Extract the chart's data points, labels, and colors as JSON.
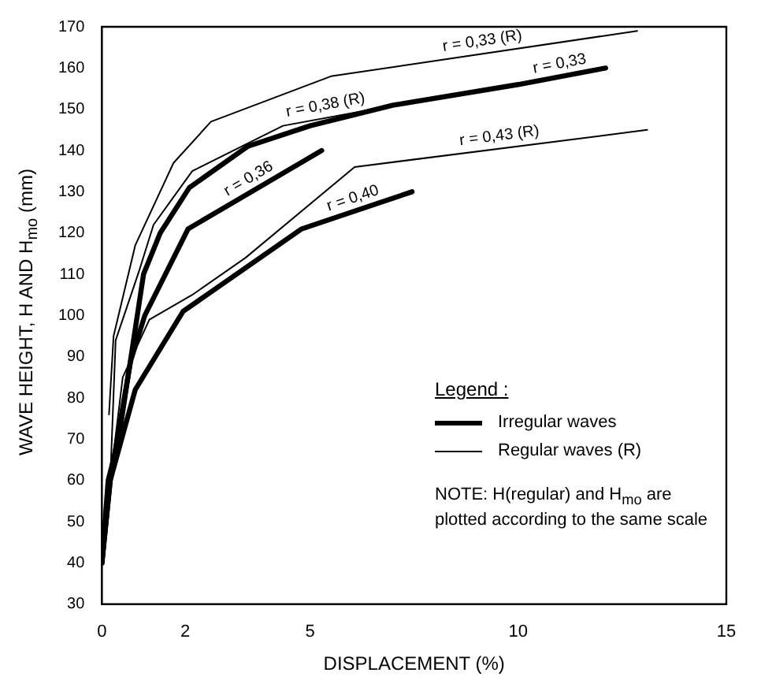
{
  "chart_data": {
    "type": "line",
    "xlabel": "DISPLACEMENT (%)",
    "ylabel": "WAVE HEIGHT, H AND H$_{mo}$ (mm)",
    "legend_title": "Legend :",
    "xlim": [
      0,
      15
    ],
    "xticks": [
      0,
      2,
      5,
      10,
      15
    ],
    "ylim": [
      30,
      170
    ],
    "yticks": [
      30,
      40,
      50,
      60,
      70,
      80,
      90,
      100,
      110,
      120,
      130,
      140,
      150,
      160,
      170
    ],
    "grid": false,
    "legend": false,
    "marker": "none",
    "line_style": "solid",
    "series": [
      {
        "name": "r = 0,33",
        "color": "#000000",
        "x": [
          0,
          0.15,
          0.4,
          0.7,
          1.0,
          1.4,
          2.1,
          3.5,
          5,
          7,
          10,
          12.1
        ],
        "values": [
          40,
          60,
          70,
          90,
          110,
          120,
          131,
          141,
          146,
          151,
          156,
          160
        ]
      },
      {
        "name": "r = 0,36",
        "color": "#000000",
        "x": [
          0,
          0.2,
          0.69,
          1.03,
          2.07,
          5.28
        ],
        "values": [
          40,
          60,
          89,
          100,
          121,
          140
        ]
      },
      {
        "name": "r = 0,40",
        "color": "#000000",
        "x": [
          0,
          0.2,
          0.8,
          1.95,
          4.8,
          7.45
        ],
        "values": [
          40,
          60,
          82,
          101,
          121,
          130
        ]
      },
      {
        "name": "r = 0,33 (R)",
        "color": "#000000",
        "x": [
          0.17,
          0.28,
          0.8,
          1.72,
          2.62,
          5.5,
          12.86
        ],
        "values": [
          76,
          95,
          117,
          137,
          147,
          158,
          169
        ]
      },
      {
        "name": "r = 0,38 (R)",
        "color": "#000000",
        "x": [
          0,
          0.2,
          0.33,
          0.9,
          1.24,
          2.17,
          4.35,
          6.5
        ],
        "values": [
          40,
          60,
          94,
          111,
          122,
          135,
          146,
          150
        ]
      },
      {
        "name": "r = 0,43 (R)",
        "color": "#000000",
        "x": [
          0,
          0.2,
          0.5,
          1.14,
          2.17,
          3.45,
          6.07,
          13.1
        ],
        "values": [
          40,
          60,
          85,
          99,
          105,
          114,
          136,
          145
        ]
      }
    ],
    "annotations": [
      "Irregular waves",
      "Regular waves (R)",
      "NOTE:  H(regular) and H$_{mo}$ are plotted according to the same scale"
    ]
  }
}
